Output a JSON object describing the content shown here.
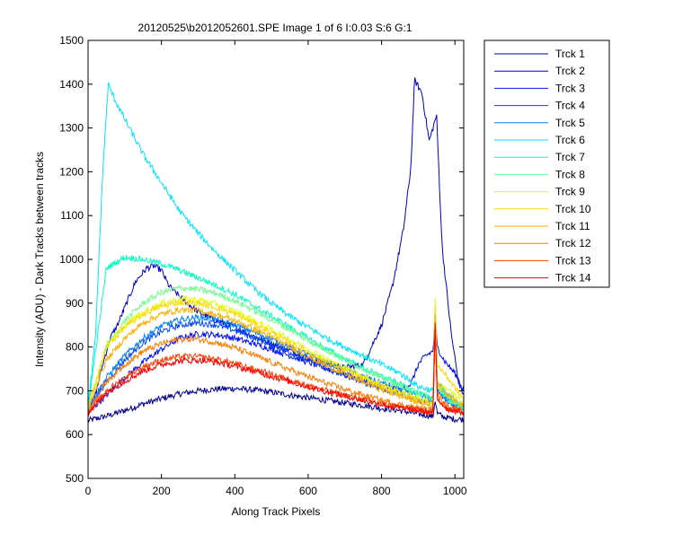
{
  "chart_data": {
    "type": "line",
    "title": "20120525\\b2012052601.SPE  Image 1 of 6  I:0.03  S:6  G:1",
    "xlabel": "Along Track Pixels",
    "ylabel": "Intensity (ADU) - Dark Tracks between tracks",
    "xlim": [
      0,
      1024
    ],
    "ylim": [
      500,
      1500
    ],
    "xticks": [
      "0",
      "200",
      "400",
      "600",
      "800",
      "1000"
    ],
    "yticks": [
      "500",
      "600",
      "700",
      "800",
      "900",
      "1000",
      "1100",
      "1200",
      "1300",
      "1400",
      "1500"
    ],
    "grid": false,
    "legend_position": "outside-top-right",
    "series": [
      {
        "name": "Trck 1",
        "color": "#00008f",
        "x": [
          0,
          50,
          100,
          150,
          200,
          250,
          300,
          350,
          400,
          450,
          500,
          550,
          600,
          650,
          700,
          750,
          800,
          850,
          900,
          930,
          940,
          946,
          952,
          970,
          1000,
          1024
        ],
        "y": [
          632,
          642,
          655,
          670,
          682,
          693,
          700,
          704,
          705,
          702,
          697,
          690,
          684,
          678,
          672,
          667,
          660,
          655,
          647,
          643,
          640,
          680,
          648,
          640,
          635,
          635
        ]
      },
      {
        "name": "Trck 2",
        "color": "#0000c8",
        "x": [
          0,
          20,
          40,
          60,
          80,
          100,
          130,
          160,
          180,
          200,
          220,
          250,
          300,
          350,
          400,
          450,
          500,
          550,
          600,
          650,
          700,
          750,
          800,
          830,
          860,
          880,
          890,
          910,
          930,
          940,
          950,
          965,
          990,
          1010,
          1024
        ],
        "y": [
          648,
          690,
          760,
          820,
          850,
          890,
          950,
          980,
          985,
          975,
          940,
          915,
          880,
          860,
          845,
          825,
          808,
          792,
          775,
          762,
          752,
          760,
          850,
          940,
          1070,
          1210,
          1410,
          1380,
          1270,
          1300,
          1330,
          1030,
          830,
          720,
          690
        ]
      },
      {
        "name": "Trck 3",
        "color": "#0010ff",
        "x": [
          0,
          50,
          100,
          150,
          200,
          250,
          300,
          350,
          400,
          450,
          500,
          550,
          600,
          650,
          700,
          750,
          800,
          850,
          880,
          900,
          920,
          940,
          946,
          952,
          970,
          1000,
          1024
        ],
        "y": [
          650,
          690,
          730,
          765,
          795,
          820,
          830,
          828,
          820,
          808,
          795,
          780,
          765,
          750,
          737,
          725,
          710,
          702,
          715,
          760,
          780,
          790,
          860,
          800,
          770,
          740,
          700
        ]
      },
      {
        "name": "Trck 4",
        "color": "#0046ff",
        "x": [
          0,
          50,
          100,
          150,
          200,
          250,
          300,
          350,
          400,
          450,
          500,
          550,
          600,
          650,
          700,
          750,
          800,
          850,
          900,
          940,
          946,
          952,
          980,
          1024
        ],
        "y": [
          660,
          720,
          770,
          810,
          835,
          850,
          855,
          850,
          838,
          822,
          805,
          788,
          770,
          752,
          735,
          720,
          705,
          693,
          680,
          672,
          835,
          700,
          672,
          660
        ]
      },
      {
        "name": "Trck 5",
        "color": "#007eff",
        "x": [
          0,
          50,
          100,
          150,
          200,
          250,
          300,
          350,
          400,
          450,
          500,
          550,
          600,
          650,
          700,
          750,
          800,
          850,
          900,
          940,
          946,
          952,
          980,
          1024
        ],
        "y": [
          662,
          730,
          780,
          820,
          848,
          862,
          868,
          862,
          850,
          835,
          818,
          800,
          782,
          765,
          748,
          732,
          718,
          705,
          690,
          680,
          830,
          710,
          680,
          665
        ]
      },
      {
        "name": "Trck 6",
        "color": "#00e4ff",
        "x": [
          0,
          20,
          40,
          55,
          70,
          100,
          150,
          200,
          250,
          300,
          350,
          400,
          450,
          500,
          550,
          600,
          650,
          700,
          750,
          800,
          850,
          900,
          940,
          946,
          952,
          980,
          1024
        ],
        "y": [
          660,
          820,
          1200,
          1400,
          1370,
          1320,
          1240,
          1175,
          1110,
          1060,
          1015,
          975,
          935,
          900,
          870,
          845,
          820,
          800,
          780,
          760,
          740,
          710,
          700,
          860,
          720,
          690,
          670
        ]
      },
      {
        "name": "Trck 7",
        "color": "#00ffc0",
        "x": [
          0,
          50,
          100,
          150,
          200,
          250,
          300,
          350,
          400,
          450,
          500,
          550,
          600,
          650,
          700,
          750,
          800,
          850,
          900,
          940,
          946,
          952,
          980,
          1024
        ],
        "y": [
          660,
          980,
          1005,
          1000,
          990,
          975,
          958,
          940,
          920,
          895,
          870,
          845,
          820,
          795,
          773,
          752,
          733,
          715,
          695,
          680,
          860,
          710,
          680,
          660
        ]
      },
      {
        "name": "Trck 8",
        "color": "#70ff8e",
        "x": [
          0,
          50,
          100,
          150,
          200,
          250,
          300,
          350,
          400,
          450,
          500,
          550,
          600,
          650,
          700,
          750,
          800,
          850,
          900,
          940,
          946,
          952,
          980,
          1024
        ],
        "y": [
          660,
          800,
          860,
          900,
          925,
          935,
          932,
          922,
          905,
          885,
          862,
          840,
          815,
          793,
          770,
          750,
          730,
          712,
          695,
          682,
          870,
          710,
          680,
          660
        ]
      },
      {
        "name": "Trck 9",
        "color": "#e0ff1f",
        "x": [
          0,
          50,
          100,
          150,
          200,
          250,
          300,
          350,
          400,
          450,
          500,
          550,
          600,
          650,
          700,
          750,
          800,
          850,
          900,
          940,
          946,
          952,
          980,
          1024
        ],
        "y": [
          660,
          805,
          850,
          880,
          900,
          910,
          908,
          898,
          882,
          862,
          840,
          817,
          795,
          772,
          752,
          732,
          714,
          698,
          683,
          672,
          920,
          712,
          705,
          670
        ]
      },
      {
        "name": "Trck 10",
        "color": "#ffd800",
        "x": [
          0,
          50,
          100,
          150,
          200,
          250,
          300,
          350,
          400,
          450,
          500,
          550,
          600,
          650,
          700,
          750,
          800,
          850,
          900,
          940,
          946,
          952,
          980,
          1024
        ],
        "y": [
          660,
          800,
          845,
          875,
          893,
          902,
          900,
          890,
          875,
          855,
          833,
          810,
          788,
          767,
          747,
          728,
          710,
          695,
          680,
          670,
          900,
          760,
          730,
          680
        ]
      },
      {
        "name": "Trck 11",
        "color": "#ffae00",
        "x": [
          0,
          50,
          100,
          150,
          200,
          250,
          300,
          350,
          400,
          450,
          500,
          550,
          600,
          650,
          700,
          750,
          800,
          850,
          900,
          940,
          946,
          952,
          980,
          1024
        ],
        "y": [
          660,
          770,
          820,
          855,
          875,
          885,
          883,
          874,
          860,
          842,
          822,
          800,
          778,
          757,
          738,
          720,
          703,
          688,
          674,
          665,
          880,
          720,
          690,
          665
        ]
      },
      {
        "name": "Trck 12",
        "color": "#ff7a00",
        "x": [
          0,
          50,
          100,
          150,
          200,
          250,
          300,
          350,
          400,
          450,
          500,
          550,
          600,
          650,
          700,
          750,
          800,
          850,
          900,
          940,
          946,
          952,
          980,
          1024
        ],
        "y": [
          655,
          720,
          760,
          790,
          808,
          818,
          818,
          810,
          798,
          782,
          765,
          748,
          732,
          717,
          703,
          690,
          678,
          668,
          660,
          655,
          850,
          690,
          665,
          655
        ]
      },
      {
        "name": "Trck 13",
        "color": "#ff4000",
        "x": [
          0,
          50,
          100,
          150,
          200,
          250,
          300,
          350,
          400,
          450,
          500,
          550,
          600,
          650,
          700,
          750,
          800,
          850,
          900,
          940,
          946,
          952,
          980,
          1024
        ],
        "y": [
          650,
          700,
          730,
          755,
          770,
          778,
          778,
          772,
          762,
          750,
          738,
          725,
          712,
          700,
          690,
          680,
          670,
          662,
          656,
          652,
          840,
          680,
          660,
          652
        ]
      },
      {
        "name": "Trck 14",
        "color": "#ff0000",
        "x": [
          0,
          50,
          100,
          150,
          200,
          250,
          300,
          350,
          400,
          450,
          500,
          550,
          600,
          650,
          700,
          750,
          800,
          850,
          900,
          940,
          946,
          952,
          980,
          1024
        ],
        "y": [
          648,
          695,
          722,
          745,
          760,
          768,
          770,
          765,
          756,
          745,
          733,
          721,
          709,
          698,
          688,
          678,
          669,
          661,
          655,
          650,
          855,
          680,
          658,
          650
        ]
      }
    ]
  }
}
